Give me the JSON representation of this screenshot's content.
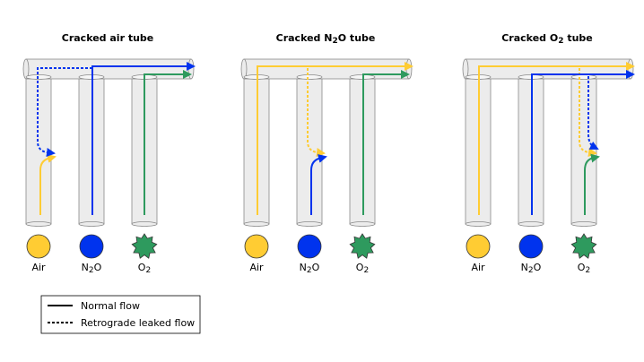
{
  "colors": {
    "air": "#FFCC33",
    "n2o": "#0033EE",
    "o2": "#2E9A5E",
    "tube_fill": "#ECECEC",
    "tube_stroke": "#8A8A8A"
  },
  "gases": [
    {
      "key": "air",
      "label": "Air",
      "icon": "yellow-circle-icon"
    },
    {
      "key": "n2o",
      "label": "N2O",
      "label_main": "N",
      "label_sub": "2",
      "label_tail": "O",
      "icon": "blue-circle-icon"
    },
    {
      "key": "o2",
      "label": "O2",
      "label_main": "O",
      "label_sub": "2",
      "icon": "green-star-icon"
    }
  ],
  "panels": [
    {
      "title": "Cracked air tube",
      "title_main": "Cracked air tube",
      "cracked": "air"
    },
    {
      "title": "Cracked N2O tube",
      "title_main": "Cracked N",
      "title_sub": "2",
      "title_tail": "O tube",
      "cracked": "n2o"
    },
    {
      "title": "Cracked O2 tube",
      "title_main": "Cracked O",
      "title_sub": "2",
      "title_tail": " tube",
      "cracked": "o2"
    }
  ],
  "legend": {
    "normal_label": "Normal flow",
    "retrograde_label": "Retrograde leaked flow"
  }
}
